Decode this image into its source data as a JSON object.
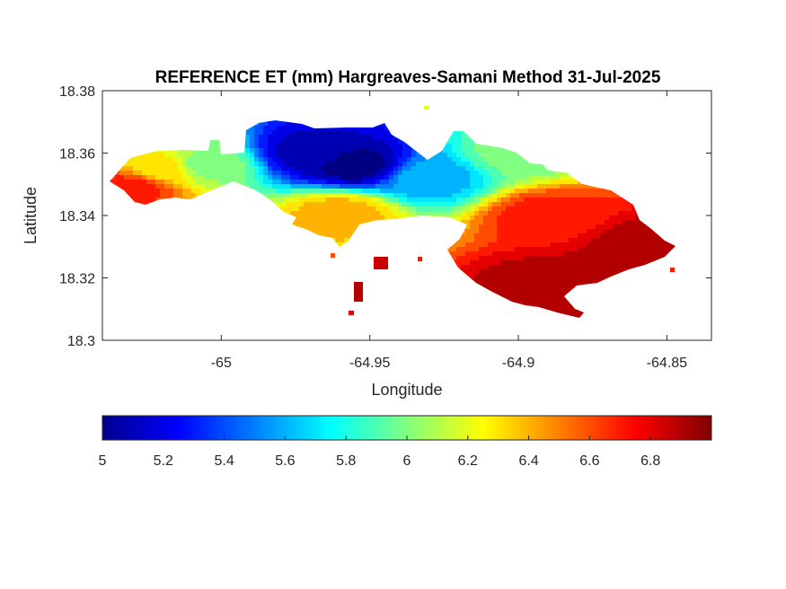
{
  "chart_data": {
    "type": "heatmap",
    "title": "REFERENCE ET (mm) Hargreaves-Samani Method  31-Jul-2025",
    "xlabel": "Longitude",
    "ylabel": "Latitude",
    "xlim": [
      -65.04,
      -64.835
    ],
    "ylim": [
      18.3,
      18.38
    ],
    "xticks": [
      -65,
      -64.95,
      -64.9,
      -64.85
    ],
    "xtick_labels": [
      "-65",
      "-64.95",
      "-64.9",
      "-64.85"
    ],
    "yticks": [
      18.3,
      18.32,
      18.34,
      18.36,
      18.38
    ],
    "ytick_labels": [
      "18.3",
      "18.32",
      "18.34",
      "18.36",
      "18.38"
    ],
    "colormap": "jet",
    "color_limits": [
      5,
      7
    ],
    "colorbar": {
      "placement": "bottom",
      "ticks": [
        5,
        5.2,
        5.4,
        5.6,
        5.8,
        6,
        6.2,
        6.4,
        6.6,
        6.8
      ],
      "tick_labels": [
        "5",
        "5.2",
        "5.4",
        "5.6",
        "5.8",
        "6",
        "6.2",
        "6.4",
        "6.6",
        "6.8"
      ]
    },
    "grid": false,
    "value_regions": [
      {
        "region": "west tip",
        "lon": -65.03,
        "lat": 18.349,
        "value": 6.7
      },
      {
        "region": "west coast",
        "lon": -65.02,
        "lat": 18.355,
        "value": 6.3
      },
      {
        "region": "west interior",
        "lon": -65.005,
        "lat": 18.356,
        "value": 6.0
      },
      {
        "region": "north-central",
        "lon": -64.97,
        "lat": 18.36,
        "value": 5.1
      },
      {
        "region": "north-central core",
        "lon": -64.955,
        "lat": 18.356,
        "value": 5.0
      },
      {
        "region": "central",
        "lon": -64.93,
        "lat": 18.352,
        "value": 5.6
      },
      {
        "region": "central south coast",
        "lon": -64.96,
        "lat": 18.341,
        "value": 6.4
      },
      {
        "region": "northeast lobe",
        "lon": -64.9,
        "lat": 18.36,
        "value": 6.0
      },
      {
        "region": "east interior",
        "lon": -64.89,
        "lat": 18.34,
        "value": 6.7
      },
      {
        "region": "east tip",
        "lon": -64.855,
        "lat": 18.33,
        "value": 6.95
      },
      {
        "region": "southeast coast",
        "lon": -64.89,
        "lat": 18.318,
        "value": 6.9
      }
    ]
  }
}
